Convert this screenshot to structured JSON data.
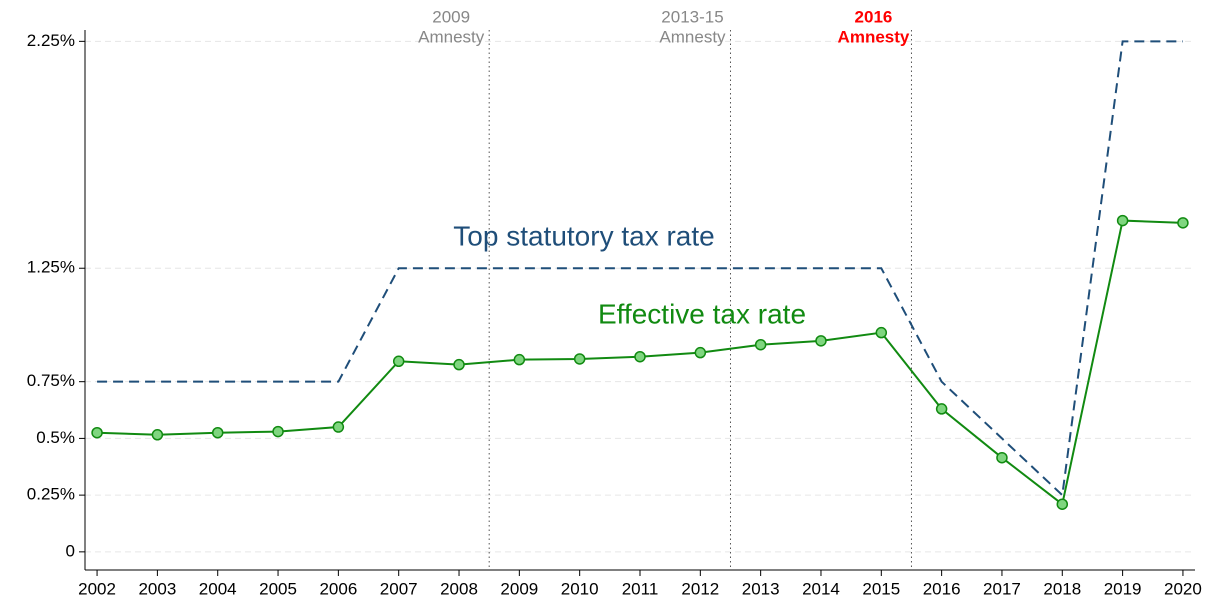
{
  "chart_data": {
    "type": "line",
    "x": [
      2002,
      2003,
      2004,
      2005,
      2006,
      2007,
      2008,
      2009,
      2010,
      2011,
      2012,
      2013,
      2014,
      2015,
      2016,
      2017,
      2018,
      2019,
      2020
    ],
    "series": [
      {
        "name": "Top statutory tax rate",
        "color": "#1f4e79",
        "dash": true,
        "markers": false,
        "values": [
          0.75,
          0.75,
          0.75,
          0.75,
          0.75,
          1.25,
          1.25,
          1.25,
          1.25,
          1.25,
          1.25,
          1.25,
          1.25,
          1.25,
          0.75,
          0.5,
          0.25,
          2.25,
          2.25
        ]
      },
      {
        "name": "Effective tax rate",
        "color": "#118a11",
        "dash": false,
        "markers": true,
        "values": [
          0.525,
          0.516,
          0.525,
          0.53,
          0.55,
          0.84,
          0.825,
          0.847,
          0.85,
          0.86,
          0.878,
          0.913,
          0.93,
          0.966,
          0.63,
          0.415,
          0.21,
          1.46,
          1.45
        ]
      }
    ],
    "xlim": [
      2001.8,
      2020.2
    ],
    "xticks": [
      2002,
      2003,
      2004,
      2005,
      2006,
      2007,
      2008,
      2009,
      2010,
      2011,
      2012,
      2013,
      2014,
      2015,
      2016,
      2017,
      2018,
      2019,
      2020
    ],
    "ylim": [
      -0.08,
      2.3
    ],
    "yticks": [
      0,
      {
        "value": 0.25,
        "label": "0.25%"
      },
      {
        "value": 0.5,
        "label": "0.5%"
      },
      {
        "value": 0.75,
        "label": "0.75%"
      },
      {
        "value": 1.25,
        "label": "1.25%"
      },
      {
        "value": 2.25,
        "label": "2.25%"
      }
    ],
    "grid": true,
    "events": [
      {
        "x": 2008.5,
        "label": [
          "2009",
          "Amnesty"
        ],
        "color": "#888888",
        "bold": false
      },
      {
        "x": 2012.5,
        "label": [
          "2013-15",
          "Amnesty"
        ],
        "color": "#888888",
        "bold": false
      },
      {
        "x": 2015.5,
        "label": [
          "2016",
          "Amnesty"
        ],
        "color": "#ff0000",
        "bold": true
      }
    ]
  }
}
